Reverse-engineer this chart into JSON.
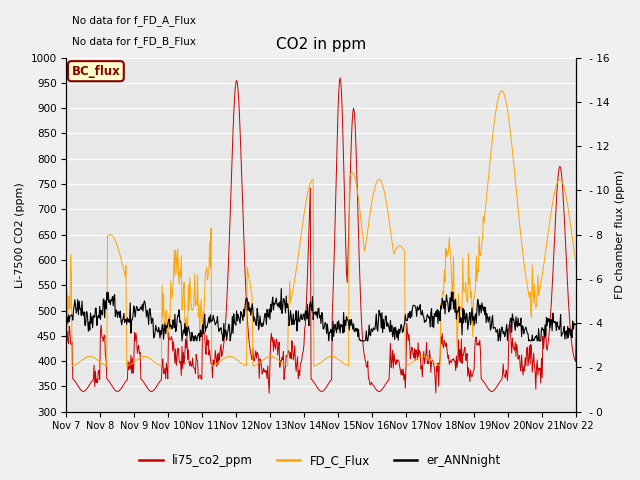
{
  "title": "CO2 in ppm",
  "ylabel_left": "Li-7500 CO2 (ppm)",
  "ylabel_right": "FD chamber flux (ppm)",
  "ylim_left": [
    300,
    1000
  ],
  "ylim_right": [
    0,
    16
  ],
  "yticks_left": [
    300,
    350,
    400,
    450,
    500,
    550,
    600,
    650,
    700,
    750,
    800,
    850,
    900,
    950,
    1000
  ],
  "yticks_right": [
    0,
    2,
    4,
    6,
    8,
    10,
    12,
    14,
    16
  ],
  "x_tick_labels": [
    "Nov 7",
    "Nov 8",
    "Nov 9",
    "Nov 10",
    "Nov 11",
    "Nov 12",
    "Nov 13",
    "Nov 14",
    "Nov 15",
    "Nov 16",
    "Nov 17",
    "Nov 18",
    "Nov 19",
    "Nov 20",
    "Nov 21",
    "Nov 22"
  ],
  "note_line1": "No data for f_FD_A_Flux",
  "note_line2": "No data for f_FD_B_Flux",
  "bc_flux_label": "BC_flux",
  "legend_entries": [
    "li75_co2_ppm",
    "FD_C_Flux",
    "er_ANNnight"
  ],
  "legend_colors": [
    "#cc0000",
    "#ffa500",
    "#000000"
  ],
  "line_colors": {
    "li75": "#cc0000",
    "fd_c": "#ffa500",
    "ann": "#000000"
  },
  "plot_bg_color": "#e8e8e8",
  "fig_bg_color": "#f0f0f0",
  "title_fontsize": 11,
  "label_fontsize": 8,
  "tick_fontsize": 7.5
}
